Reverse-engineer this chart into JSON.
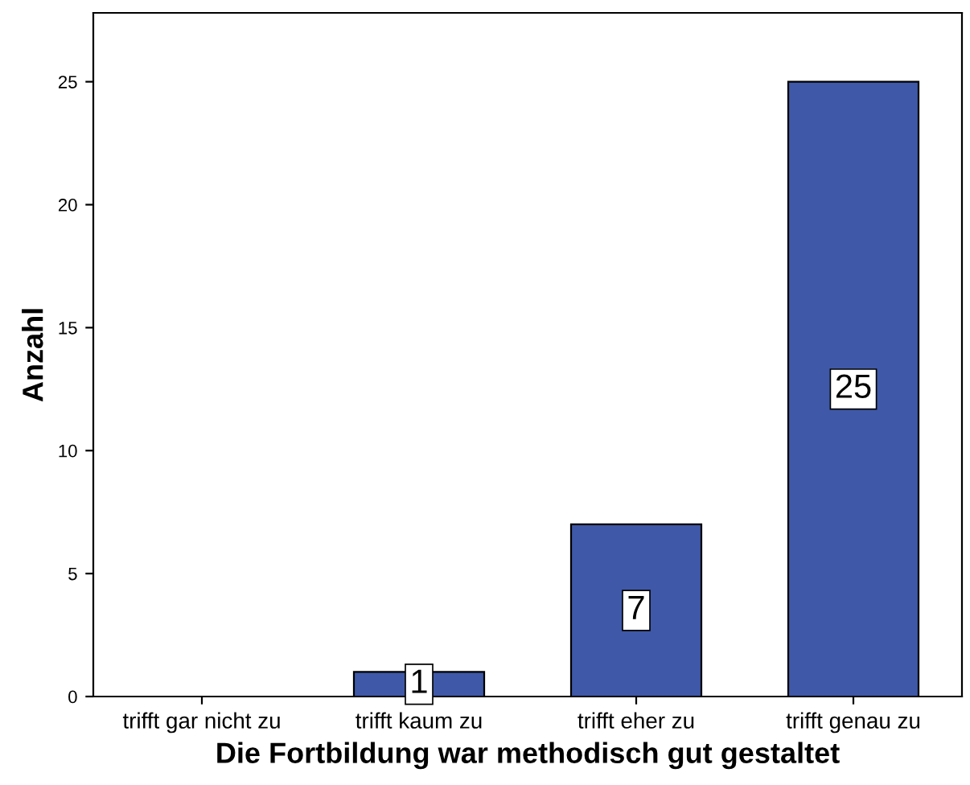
{
  "chart_data": {
    "type": "bar",
    "xlabel": "Die Fortbildung war methodisch gut gestaltet",
    "ylabel": "Anzahl",
    "categories": [
      "trifft gar nicht zu",
      "trifft kaum zu",
      "trifft eher zu",
      "trifft genau zu"
    ],
    "values": [
      0,
      1,
      7,
      25
    ],
    "value_labels": [
      null,
      "1",
      "7",
      "25"
    ],
    "color": "#3f58a8",
    "ylim": [
      0,
      27.8
    ],
    "yticks": [
      0,
      5,
      10,
      15,
      20,
      25
    ],
    "grid": false
  }
}
